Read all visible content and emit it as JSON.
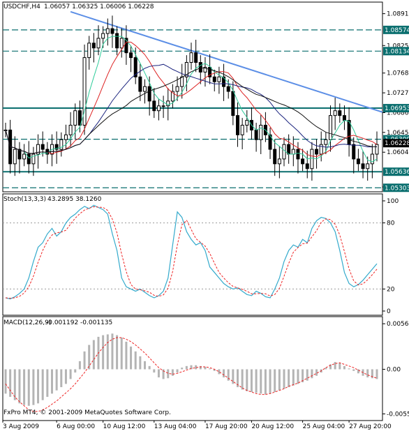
{
  "chart_data": {
    "type": "line",
    "colors": {
      "background": "#ffffff",
      "candle_body": "#000000",
      "ma_fast": "#2ecc9a",
      "ma_mid": "#dd2222",
      "ma_slow": "#1a237e",
      "ma_long": "#111111",
      "trendline": "#5b8ee6",
      "level_line": "#0b6f6f",
      "stoch_main": "#33aacc",
      "stoch_signal": "#ee2222",
      "macd_hist": "#b4b4b4",
      "macd_signal": "#ee2222",
      "price_box": "#0b6f6f",
      "price_box_current": "#000000"
    },
    "price_panel": {
      "title": "USDCHF,H4",
      "values_text": "1.06057 1.06325 1.06006 1.06228",
      "ylim": [
        1.0522,
        1.0915
      ],
      "y_ticks": [
        "1.08910",
        "1.08250",
        "1.07680",
        "1.07270",
        "1.06860",
        "1.06450",
        "1.06040",
        "1.05320"
      ],
      "levels": [
        {
          "label": "1.08574",
          "price": 1.08574,
          "style": "dashed"
        },
        {
          "label": "1.08134",
          "price": 1.08134,
          "style": "dashed"
        },
        {
          "label": "1.06953",
          "price": 1.06953,
          "style": "solid"
        },
        {
          "label": "1.06309",
          "price": 1.06309,
          "style": "dashed"
        },
        {
          "label": "1.05636",
          "price": 1.05636,
          "style": "solid"
        },
        {
          "label": "1.05303",
          "price": 1.05303,
          "style": "dashed"
        }
      ],
      "current_price_label": "1.06228",
      "trendline": {
        "from": [
          14,
          1.0895
        ],
        "to": [
          80,
          1.0687
        ]
      },
      "closes": [
        1.065,
        1.058,
        1.061,
        1.059,
        1.06,
        1.058,
        1.06,
        1.062,
        1.061,
        1.06,
        1.062,
        1.061,
        1.063,
        1.064,
        1.066,
        1.069,
        1.066,
        1.08,
        1.083,
        1.082,
        1.084,
        1.085,
        1.086,
        1.085,
        1.082,
        1.084,
        1.081,
        1.08,
        1.076,
        1.073,
        1.074,
        1.071,
        1.069,
        1.07,
        1.07,
        1.071,
        1.073,
        1.074,
        1.076,
        1.079,
        1.081,
        1.079,
        1.077,
        1.078,
        1.076,
        1.075,
        1.076,
        1.074,
        1.073,
        1.068,
        1.064,
        1.066,
        1.067,
        1.065,
        1.063,
        1.066,
        1.064,
        1.061,
        1.058,
        1.059,
        1.062,
        1.06,
        1.061,
        1.059,
        1.058,
        1.057,
        1.061,
        1.06,
        1.062,
        1.063,
        1.068,
        1.069,
        1.068,
        1.067,
        1.062,
        1.059,
        1.058,
        1.057,
        1.058,
        1.06,
        1.062
      ]
    },
    "stoch_panel": {
      "title": "Stoch(13,3,3)",
      "values_text": "43.2895 38.1260",
      "ylim": [
        0,
        100
      ],
      "y_ticks": [
        "100",
        "80",
        "20",
        "0"
      ],
      "levels": [
        80,
        20
      ],
      "main": [
        12,
        11,
        13,
        16,
        20,
        30,
        45,
        58,
        62,
        70,
        75,
        68,
        72,
        80,
        85,
        88,
        92,
        95,
        93,
        96,
        94,
        92,
        88,
        70,
        55,
        30,
        22,
        20,
        18,
        20,
        17,
        14,
        12,
        14,
        18,
        30,
        60,
        90,
        85,
        72,
        65,
        60,
        62,
        55,
        40,
        35,
        30,
        25,
        22,
        20,
        21,
        18,
        15,
        14,
        18,
        16,
        13,
        12,
        20,
        30,
        45,
        55,
        60,
        58,
        65,
        62,
        75,
        82,
        85,
        84,
        80,
        72,
        55,
        35,
        25,
        22,
        24,
        28,
        33,
        38,
        43
      ]
    },
    "macd_panel": {
      "title": "MACD(12,26,9)",
      "values_text": "-0.001192 -0.001135",
      "ylim": [
        -0.0058,
        0.0058
      ],
      "y_ticks": [
        "0.00561",
        "0.00",
        "-0.00550"
      ],
      "histogram": [
        -0.003,
        -0.0034,
        -0.0038,
        -0.0042,
        -0.0044,
        -0.0045,
        -0.0044,
        -0.0042,
        -0.0038,
        -0.0034,
        -0.003,
        -0.0026,
        -0.0022,
        -0.0018,
        -0.0012,
        -0.0004,
        0.001,
        0.0022,
        0.003,
        0.0036,
        0.004,
        0.0042,
        0.0043,
        0.0044,
        0.0042,
        0.0039,
        0.0034,
        0.0028,
        0.0022,
        0.0016,
        0.001,
        0.0004,
        -0.0004,
        -0.001,
        -0.0012,
        -0.0011,
        -0.0008,
        -0.0004,
        0.0002,
        0.0004,
        0.0005,
        0.0005,
        0.0004,
        0.0003,
        0.0001,
        -0.0002,
        -0.0006,
        -0.001,
        -0.0014,
        -0.0018,
        -0.0022,
        -0.0025,
        -0.0027,
        -0.0028,
        -0.0029,
        -0.003,
        -0.0031,
        -0.003,
        -0.0028,
        -0.0026,
        -0.0024,
        -0.0022,
        -0.002,
        -0.0018,
        -0.0016,
        -0.0014,
        -0.0011,
        -0.0008,
        -0.0004,
        0.0002,
        0.0006,
        0.0009,
        0.0008,
        0.0004,
        0.0001,
        -0.0002,
        -0.0005,
        -0.0008,
        -0.001,
        -0.0011,
        -0.0012
      ],
      "signal": [
        -0.0018,
        -0.0026,
        -0.0034,
        -0.004,
        -0.0045,
        -0.005,
        -0.0052,
        -0.0052,
        -0.005,
        -0.0047,
        -0.0043,
        -0.0039,
        -0.0034,
        -0.0029,
        -0.0024,
        -0.0018,
        -0.0011,
        -0.0004,
        0.0004,
        0.0012,
        0.002,
        0.0027,
        0.0033,
        0.0037,
        0.0039,
        0.0039,
        0.0037,
        0.0034,
        0.003,
        0.0025,
        0.002,
        0.0014,
        0.0008,
        0.0002,
        -0.0002,
        -0.0005,
        -0.0006,
        -0.0005,
        -0.0003,
        -0.0001,
        0.0001,
        0.0002,
        0.0003,
        0.0003,
        0.0002,
        0.0,
        -0.0003,
        -0.0007,
        -0.0011,
        -0.0015,
        -0.0019,
        -0.0023,
        -0.0026,
        -0.0028,
        -0.003,
        -0.0031,
        -0.0031,
        -0.003,
        -0.0028,
        -0.0026,
        -0.0024,
        -0.0021,
        -0.0019,
        -0.0017,
        -0.0014,
        -0.0011,
        -0.0008,
        -0.0005,
        -0.0002,
        0.0002,
        0.0005,
        0.0007,
        0.0008,
        0.0006,
        0.0004,
        0.0002,
        -0.0001,
        -0.0004,
        -0.0007,
        -0.0009,
        -0.0011
      ]
    },
    "x_tick_labels": [
      "3 Aug 2009",
      "6 Aug 00:00",
      "10 Aug 12:00",
      "13 Aug 04:00",
      "17 Aug 20:00",
      "20 Aug 12:00",
      "25 Aug 04:00",
      "27 Aug 20:00"
    ],
    "copyright": "FxPro MT4, © 2001-2009 MetaQuotes Software Corp."
  }
}
